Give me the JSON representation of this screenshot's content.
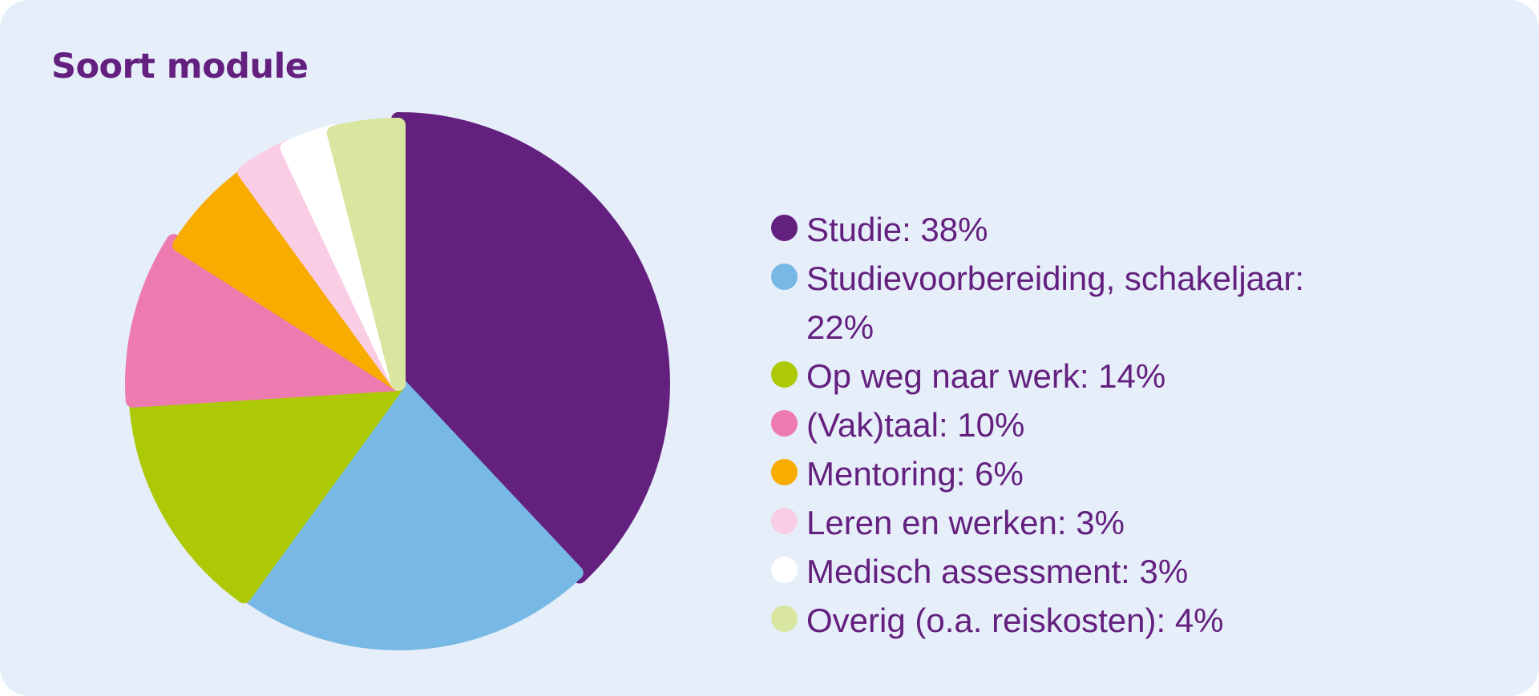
{
  "title": "Soort module",
  "colors": {
    "background": "#e6eefa",
    "title": "#64207e",
    "legend_text": "#64207e"
  },
  "chart_data": {
    "type": "pie",
    "title": "Soort module",
    "slices": [
      {
        "label": "Studie: 38%",
        "value": 38,
        "color": "#64207e"
      },
      {
        "label": "Studievoorbereiding, schakeljaar: 22%",
        "value": 22,
        "color": "#78b8e5"
      },
      {
        "label": "Op weg naar werk: 14%",
        "value": 14,
        "color": "#adc906"
      },
      {
        "label": "(Vak)taal: 10%",
        "value": 10,
        "color": "#ee7bb0"
      },
      {
        "label": "Mentoring: 6%",
        "value": 6,
        "color": "#f8ac00"
      },
      {
        "label": "Leren en werken: 3%",
        "value": 3,
        "color": "#f9cde4"
      },
      {
        "label": "Medisch assessment: 3%",
        "value": 3,
        "color": "#ffffff"
      },
      {
        "label": "Overig (o.a. reiskosten): 4%",
        "value": 4,
        "color": "#d8e6a0"
      }
    ],
    "legend": "right"
  }
}
